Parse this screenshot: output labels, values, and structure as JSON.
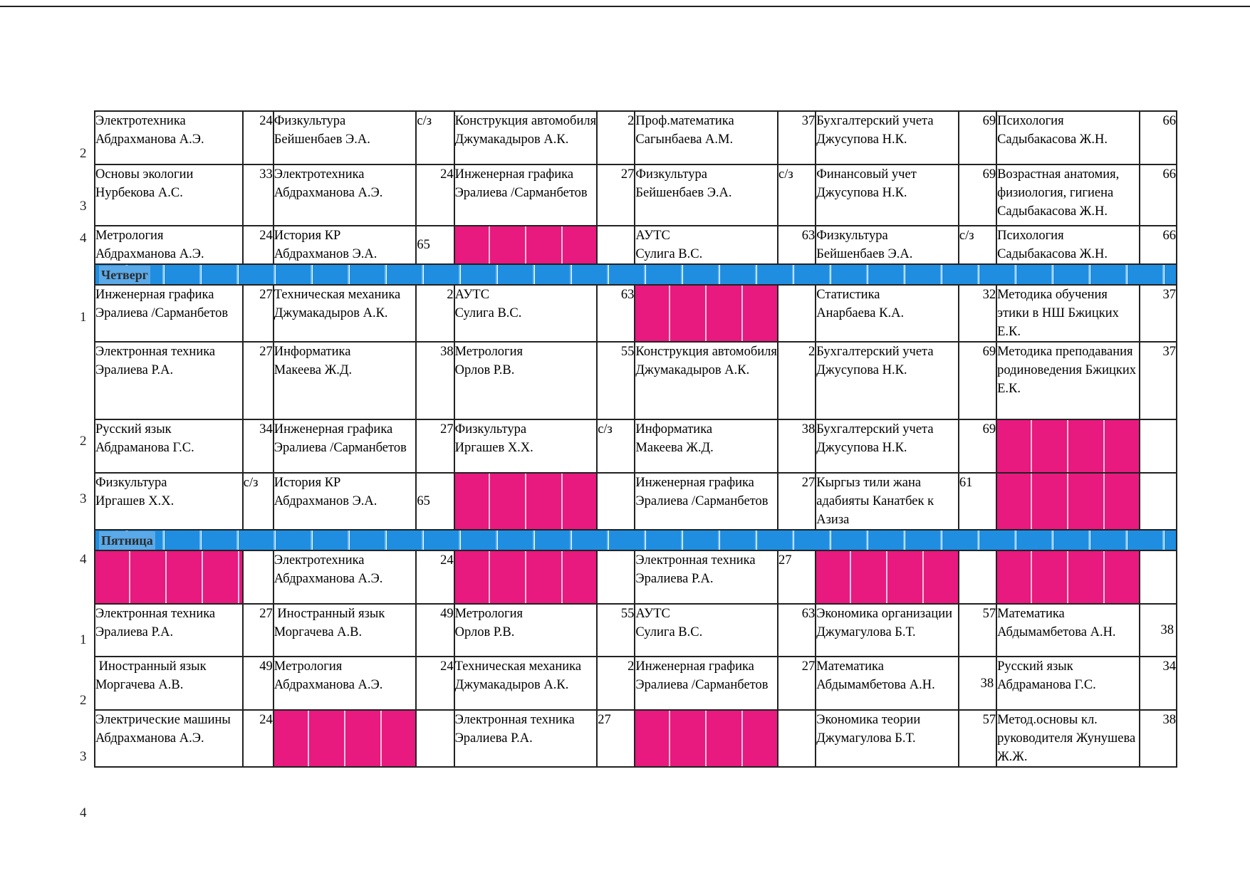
{
  "days": {
    "thursday": "Четверг",
    "friday": "Пятница"
  },
  "period_numbers": {
    "wed": [
      "2",
      "3",
      "4"
    ],
    "thu": [
      "1",
      "2",
      "3",
      "4"
    ],
    "fri": [
      "1",
      "2",
      "3",
      "4"
    ]
  },
  "wed": {
    "p2": [
      {
        "s": "Электротехника",
        "t": "Абдрахманова А.Э.",
        "r": "24"
      },
      {
        "s": "Физкультура",
        "t": "Бейшенбаев Э.А.",
        "r": "с/з"
      },
      {
        "s": "Конструкция автомобиля",
        "t": "Джумакадыров А.К.",
        "r": "2"
      },
      {
        "s": "Проф.математика",
        "t": "Сагынбаева А.М.",
        "r": "37"
      },
      {
        "s": "Бухгалтерский учета",
        "t": "Джусупова Н.К.",
        "r": "69"
      },
      {
        "s": "Психология",
        "t": "Садыбакасова Ж.Н.",
        "r": "66"
      }
    ],
    "p3": [
      {
        "s": "Основы экологии",
        "t": "Нурбекова А.С.",
        "r": "33"
      },
      {
        "s": "Электротехника",
        "t": "Абдрахманова А.Э.",
        "r": "24"
      },
      {
        "s": "Инженерная графика  Эралиева /Сарманбетов",
        "r": "27"
      },
      {
        "s": "Физкультура",
        "t": "Бейшенбаев Э.А.",
        "r": "с/з"
      },
      {
        "s": "Финансовый учет",
        "t": "Джусупова Н.К.",
        "r": "69"
      },
      {
        "s": "Возрастная анатомия, физиология, гигиена Садыбакасова Ж.Н.",
        "r": "66"
      }
    ],
    "p4": [
      {
        "s": "Метрология",
        "t": "Абдрахманова А.Э.",
        "r": "24"
      },
      {
        "s": "История КР",
        "t": "Абдрахманов Э.А.",
        "r": "65"
      },
      {
        "s": "АУТС",
        "t": "Сулига В.С.",
        "r": "63"
      },
      {
        "s": "Физкультура",
        "t": "Бейшенбаев Э.А.",
        "r": "с/з"
      },
      {
        "s": "Психология",
        "t": "Садыбакасова Ж.Н.",
        "r": "66"
      }
    ]
  },
  "thu": {
    "p1": [
      {
        "s": "Инженерная графика Эралиева /Сарманбетов",
        "r": "27"
      },
      {
        "s": "Техническая механика Джумакадыров А.К.",
        "r": "2"
      },
      {
        "s": "АУТС",
        "t": "Сулига В.С.",
        "r": "63"
      },
      {
        "s": "Статистика",
        "t": "Анарбаева К.А.",
        "r": "32"
      },
      {
        "s": "Методика обучения этики в НШ Бжицких Е.К.",
        "r": "37"
      }
    ],
    "p2": [
      {
        "s": "Электронная техника",
        "t": "Эралиева Р.А.",
        "r": "27"
      },
      {
        "s": "Информатика",
        "t": "Макеева Ж.Д.",
        "r": "38"
      },
      {
        "s": "Метрология",
        "t": "Орлов Р.В.",
        "r": "55"
      },
      {
        "s": "Конструкция автомобиля Джумакадыров А.К.",
        "r": "2"
      },
      {
        "s": "Бухгалтерский учета",
        "t": "Джусупова Н.К.",
        "r": "69"
      },
      {
        "s": "Методика преподавания родиноведения Бжицких Е.К.",
        "r": "37"
      }
    ],
    "p3": [
      {
        "s": "Русский язык",
        "t": "Абдраманова Г.С.",
        "r": "34"
      },
      {
        "s": "Инженерная графика  Эралиева /Сарманбетов",
        "r": "27"
      },
      {
        "s": "Физкультура",
        "t": "Иргашев Х.Х.",
        "r": "с/з"
      },
      {
        "s": "Информатика",
        "t": "Макеева Ж.Д.",
        "r": "38"
      },
      {
        "s": "Бухгалтерский учета",
        "t": "Джусупова Н.К.",
        "r": "69"
      }
    ],
    "p4": [
      {
        "s": "Физкультура",
        "t": "Иргашев Х.Х.",
        "r": "с/з"
      },
      {
        "s": "История КР",
        "t": "Абдрахманов Э.А.",
        "r": "65"
      },
      {
        "s": "Инженерная графика Эралиева /Сарманбетов",
        "r": "27"
      },
      {
        "s": "Кыргыз тили жана адабияты Канатбек к Азиза",
        "r": "61"
      }
    ]
  },
  "fri": {
    "p1": [
      {
        "s": "Электротехника",
        "t": "Абдрахманова А.Э.",
        "r": "24"
      },
      {
        "s": "Электронная техника  Эралиева Р.А.",
        "r": "27"
      }
    ],
    "p2": [
      {
        "s": "Электронная техника",
        "t": "Эралиева Р.А.",
        "r": "27"
      },
      {
        "s": " Иностранный язык",
        "t": "Моргачева А.В.",
        "r": "49"
      },
      {
        "s": "Метрология",
        "t": "Орлов Р.В.",
        "r": "55"
      },
      {
        "s": "АУТС",
        "t": "Сулига В.С.",
        "r": "63"
      },
      {
        "s": "Экономика организации Джумагулова Б.Т.",
        "r": "57"
      },
      {
        "s": "Математика",
        "t": "Абдымамбетова А.Н.",
        "r": "38"
      }
    ],
    "p3": [
      {
        "s": " Иностранный язык",
        "t": "Моргачева А.В.",
        "r": "49"
      },
      {
        "s": "Метрология",
        "t": "Абдрахманова А.Э.",
        "r": "24"
      },
      {
        "s": "Техническая механика Джумакадыров А.К.",
        "r": "2"
      },
      {
        "s": "Инженерная графика Эралиева /Сарманбетов",
        "r": "27"
      },
      {
        "s": "Математика",
        "t": "Абдымамбетова А.Н.",
        "r": "38"
      },
      {
        "s": "Русский язык",
        "t": "Абдраманова Г.С.",
        "r": "34"
      }
    ],
    "p4": [
      {
        "s": "Электрические машины Абдрахманова А.Э.",
        "r": "24"
      },
      {
        "s": "Электронная техника Эралиева Р.А.",
        "r": "27"
      },
      {
        "s": "Экономика теории",
        "t": "Джумагулова Б.Т.",
        "r": "57"
      },
      {
        "s": "Метод.основы кл. руководителя Жунушева Ж.Ж.",
        "r": "38"
      }
    ]
  }
}
